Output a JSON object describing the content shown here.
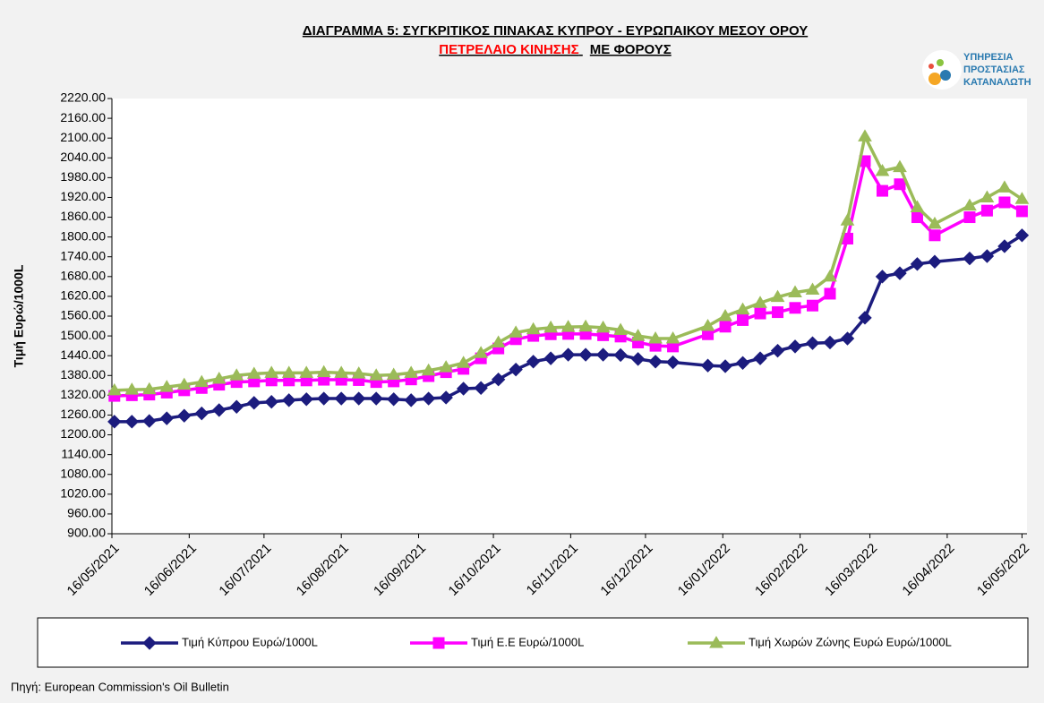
{
  "chart_data": {
    "type": "line",
    "title": "ΔΙΑΓΡΑΜΜΑ 5: ΣΥΓΚΡΙΤΙΚΟΣ ΠΙΝΑΚΑΣ ΚΥΠΡΟΥ - ΕΥΡΩΠΑΙΚΟΥ ΜΕΣΟΥ ΟΡΟΥ",
    "subtitle": [
      "ΠΕΤΡΕΛΑΙΟ ΚΙΝΗΣΗΣ",
      "ΜΕ ΦΟΡΟΥΣ"
    ],
    "logo": [
      "ΥΠΗΡΕΣΙΑ",
      "ΠΡΟΣΤΑΣΙΑΣ",
      "ΚΑΤΑΝΑΛΩΤΗ"
    ],
    "y_label": "Τιμή Ευρώ/1000L",
    "source": "Πηγή: European Commission's Oil Bulletin",
    "x": [
      "2021-05-17",
      "2021-05-24",
      "2021-05-31",
      "2021-06-07",
      "2021-06-14",
      "2021-06-21",
      "2021-06-28",
      "2021-07-05",
      "2021-07-12",
      "2021-07-19",
      "2021-07-26",
      "2021-08-02",
      "2021-08-09",
      "2021-08-16",
      "2021-08-23",
      "2021-08-30",
      "2021-09-06",
      "2021-09-13",
      "2021-09-20",
      "2021-09-27",
      "2021-10-04",
      "2021-10-11",
      "2021-10-18",
      "2021-10-25",
      "2021-11-01",
      "2021-11-08",
      "2021-11-15",
      "2021-11-22",
      "2021-11-29",
      "2021-12-06",
      "2021-12-13",
      "2021-12-20",
      "2021-12-27",
      "2022-01-10",
      "2022-01-17",
      "2022-01-24",
      "2022-01-31",
      "2022-02-07",
      "2022-02-14",
      "2022-02-21",
      "2022-02-28",
      "2022-03-07",
      "2022-03-14",
      "2022-03-21",
      "2022-03-28",
      "2022-04-04",
      "2022-04-11",
      "2022-04-25",
      "2022-05-02",
      "2022-05-09",
      "2022-05-16"
    ],
    "series": [
      {
        "name": "Τιμή Κύπρου Ευρώ/1000L",
        "color": "#1c1c7e",
        "marker": "diamond",
        "values": [
          1240,
          1240,
          1242,
          1250,
          1258,
          1265,
          1275,
          1285,
          1297,
          1300,
          1305,
          1308,
          1310,
          1310,
          1310,
          1310,
          1308,
          1305,
          1310,
          1313,
          1340,
          1342,
          1368,
          1398,
          1422,
          1432,
          1443,
          1443,
          1443,
          1442,
          1430,
          1422,
          1420,
          1410,
          1408,
          1418,
          1432,
          1455,
          1468,
          1478,
          1480,
          1492,
          1555,
          1680,
          1690,
          1718,
          1725,
          1735,
          1742,
          1772,
          1805
        ]
      },
      {
        "name": "Τιμή Ε.Ε Ευρώ/1000L",
        "color": "#ff00ff",
        "marker": "square",
        "values": [
          1318,
          1320,
          1322,
          1328,
          1335,
          1342,
          1352,
          1360,
          1362,
          1365,
          1365,
          1365,
          1367,
          1367,
          1366,
          1360,
          1362,
          1368,
          1378,
          1390,
          1400,
          1432,
          1462,
          1490,
          1500,
          1505,
          1506,
          1506,
          1502,
          1498,
          1480,
          1470,
          1468,
          1505,
          1528,
          1548,
          1568,
          1572,
          1585,
          1592,
          1628,
          1795,
          2030,
          1940,
          1960,
          1860,
          1805,
          1860,
          1880,
          1905,
          1878
        ]
      },
      {
        "name": "Τιμή Χωρών Ζώνης Ευρώ Ευρώ/1000L",
        "color": "#9bbb59",
        "marker": "triangle",
        "values": [
          1335,
          1337,
          1338,
          1345,
          1352,
          1360,
          1370,
          1380,
          1385,
          1388,
          1388,
          1388,
          1390,
          1388,
          1386,
          1380,
          1382,
          1388,
          1395,
          1405,
          1418,
          1448,
          1480,
          1510,
          1520,
          1525,
          1527,
          1528,
          1525,
          1518,
          1500,
          1492,
          1492,
          1530,
          1560,
          1580,
          1600,
          1618,
          1632,
          1640,
          1680,
          1850,
          2105,
          2000,
          2012,
          1890,
          1840,
          1895,
          1920,
          1950,
          1915
        ]
      }
    ],
    "xlim": [
      "2021-05-16",
      "2022-05-18"
    ],
    "xticks": [
      {
        "value": "2021-05-16",
        "label": "16/05/2021"
      },
      {
        "value": "2021-06-16",
        "label": "16/06/2021"
      },
      {
        "value": "2021-07-16",
        "label": "16/07/2021"
      },
      {
        "value": "2021-08-16",
        "label": "16/08/2021"
      },
      {
        "value": "2021-09-16",
        "label": "16/09/2021"
      },
      {
        "value": "2021-10-16",
        "label": "16/10/2021"
      },
      {
        "value": "2021-11-16",
        "label": "16/11/2021"
      },
      {
        "value": "2021-12-16",
        "label": "16/12/2021"
      },
      {
        "value": "2022-01-16",
        "label": "16/01/2022"
      },
      {
        "value": "2022-02-16",
        "label": "16/02/2022"
      },
      {
        "value": "2022-03-16",
        "label": "16/03/2022"
      },
      {
        "value": "2022-04-16",
        "label": "16/04/2022"
      },
      {
        "value": "2022-05-16",
        "label": "16/05/2022"
      }
    ],
    "ylim": [
      900,
      2220
    ],
    "yticks": [
      {
        "value": 900,
        "label": "900.00"
      },
      {
        "value": 960,
        "label": "960.00"
      },
      {
        "value": 1020,
        "label": "1020.00"
      },
      {
        "value": 1080,
        "label": "1080.00"
      },
      {
        "value": 1140,
        "label": "1140.00"
      },
      {
        "value": 1200,
        "label": "1200.00"
      },
      {
        "value": 1260,
        "label": "1260.00"
      },
      {
        "value": 1320,
        "label": "1320.00"
      },
      {
        "value": 1380,
        "label": "1380.00"
      },
      {
        "value": 1440,
        "label": "1440.00"
      },
      {
        "value": 1500,
        "label": "1500.00"
      },
      {
        "value": 1560,
        "label": "1560.00"
      },
      {
        "value": 1620,
        "label": "1620.00"
      },
      {
        "value": 1680,
        "label": "1680.00"
      },
      {
        "value": 1740,
        "label": "1740.00"
      },
      {
        "value": 1800,
        "label": "1800.00"
      },
      {
        "value": 1860,
        "label": "1860.00"
      },
      {
        "value": 1920,
        "label": "1920.00"
      },
      {
        "value": 1980,
        "label": "1980.00"
      },
      {
        "value": 2040,
        "label": "2040.00"
      },
      {
        "value": 2100,
        "label": "2100.00"
      },
      {
        "value": 2160,
        "label": "2160.00"
      },
      {
        "value": 2220,
        "label": "2220.00"
      }
    ],
    "grid": false,
    "legend": "bottom"
  }
}
